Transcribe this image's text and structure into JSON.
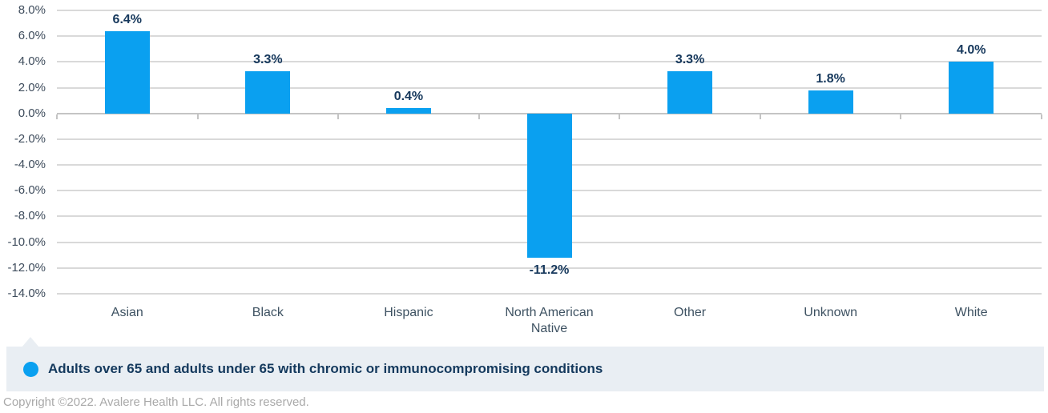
{
  "chart_data": {
    "type": "bar",
    "categories": [
      "Asian",
      "Black",
      "Hispanic",
      "North American Native",
      "Other",
      "Unknown",
      "White"
    ],
    "values": [
      6.4,
      3.3,
      0.4,
      -11.2,
      3.3,
      1.8,
      4.0
    ],
    "value_labels": [
      "6.4%",
      "3.3%",
      "0.4%",
      "-11.2%",
      "3.3%",
      "1.8%",
      "4.0%"
    ],
    "title": "",
    "xlabel": "",
    "ylabel": "",
    "ylim": [
      -14.0,
      8.0
    ],
    "y_tick_step": 2.0,
    "y_ticks": [
      8.0,
      6.0,
      4.0,
      2.0,
      0.0,
      -2.0,
      -4.0,
      -6.0,
      -8.0,
      -10.0,
      -12.0,
      -14.0
    ],
    "y_tick_labels": [
      "8.0%",
      "6.0%",
      "4.0%",
      "2.0%",
      "0.0%",
      "-2.0%",
      "-4.0%",
      "-6.0%",
      "-8.0%",
      "-10.0%",
      "-12.0%",
      "-14.0%"
    ],
    "grid": true,
    "legend_position": "bottom",
    "series": [
      {
        "name": "Adults over 65 and adults under 65 with chromic or immunocompromising conditions",
        "values": [
          6.4,
          3.3,
          0.4,
          -11.2,
          3.3,
          1.8,
          4.0
        ]
      }
    ]
  },
  "legend": {
    "marker": "circle-icon",
    "label": "Adults over 65 and adults under 65 with chromic or immunocompromising conditions"
  },
  "footer": {
    "copyright": "Copyright ©2022. Avalere Health LLC. All rights reserved."
  },
  "colors": {
    "bar": "#0aa0f0",
    "data_label": "#16385c",
    "axis_label": "#3e5262",
    "gridline": "#d9d9d9",
    "zero_line": "#c4c4c4",
    "legend_bg": "#e9eef3",
    "legend_text": "#14395d",
    "copyright_text": "#a9a9a9"
  }
}
